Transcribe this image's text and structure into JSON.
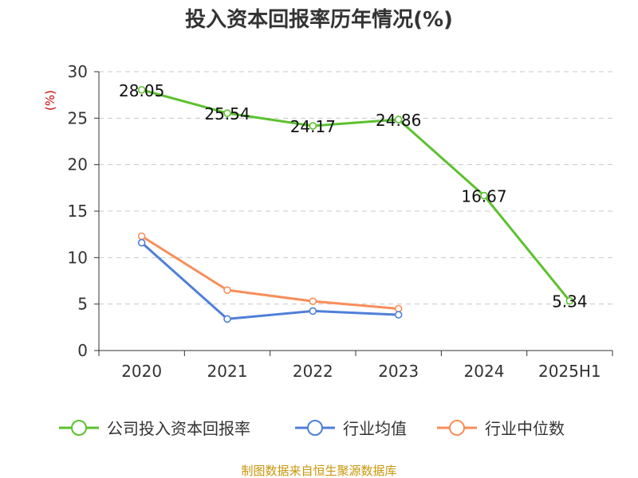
{
  "chart_data": {
    "type": "line",
    "title": "投入资本回报率历年情况(%)",
    "unit_label": "(%)",
    "categories": [
      "2020",
      "2021",
      "2022",
      "2023",
      "2024",
      "2025H1"
    ],
    "ylim": [
      0,
      30
    ],
    "yticks": [
      0,
      5,
      10,
      15,
      20,
      25,
      30
    ],
    "grid": true,
    "legend_position": "bottom",
    "series": [
      {
        "name": "公司投入资本回报率",
        "color": "#5cc12e",
        "labeled": true,
        "values": [
          28.05,
          25.54,
          24.17,
          24.86,
          16.67,
          5.34
        ]
      },
      {
        "name": "行业均值",
        "color": "#4f7fd8",
        "labeled": false,
        "values": [
          11.6,
          3.4,
          4.25,
          3.85,
          null,
          null
        ]
      },
      {
        "name": "行业中位数",
        "color": "#f88e5a",
        "labeled": false,
        "values": [
          12.3,
          6.5,
          5.3,
          4.5,
          null,
          null
        ]
      }
    ],
    "data_labels": [
      "28.05",
      "25.54",
      "24.17",
      "24.86",
      "16.67",
      "5.34"
    ]
  },
  "source": "制图数据来自恒生聚源数据库"
}
